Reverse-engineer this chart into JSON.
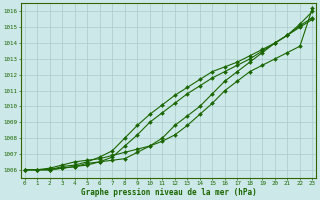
{
  "title": "Graphe pression niveau de la mer (hPa)",
  "bg_color": "#cce8e8",
  "grid_color": "#aacccc",
  "line_color": "#1a6600",
  "x_labels": [
    "0",
    "1",
    "2",
    "3",
    "4",
    "5",
    "6",
    "7",
    "8",
    "9",
    "10",
    "11",
    "12",
    "13",
    "14",
    "15",
    "16",
    "17",
    "18",
    "19",
    "20",
    "21",
    "22",
    "23"
  ],
  "ylim": [
    1005.5,
    1016.5
  ],
  "yticks": [
    1006,
    1007,
    1008,
    1009,
    1010,
    1011,
    1012,
    1013,
    1014,
    1015,
    1016
  ],
  "series": [
    [
      1006.0,
      1006.0,
      1006.0,
      1006.1,
      1006.2,
      1006.3,
      1006.5,
      1006.6,
      1006.7,
      1007.1,
      1007.5,
      1008.0,
      1008.8,
      1009.4,
      1010.0,
      1010.8,
      1011.6,
      1012.2,
      1012.8,
      1013.4,
      1014.0,
      1014.5,
      1015.0,
      1015.5
    ],
    [
      1006.0,
      1006.0,
      1006.0,
      1006.1,
      1006.2,
      1006.4,
      1006.5,
      1006.8,
      1007.5,
      1008.2,
      1009.0,
      1009.6,
      1010.2,
      1010.8,
      1011.3,
      1011.8,
      1012.2,
      1012.6,
      1013.0,
      1013.5,
      1014.0,
      1014.5,
      1015.1,
      1015.6
    ],
    [
      1006.0,
      1006.0,
      1006.0,
      1006.2,
      1006.3,
      1006.5,
      1006.8,
      1007.2,
      1008.0,
      1008.8,
      1009.5,
      1010.1,
      1010.7,
      1011.2,
      1011.7,
      1012.2,
      1012.5,
      1012.8,
      1013.2,
      1013.6,
      1014.0,
      1014.5,
      1015.2,
      1016.0
    ],
    [
      1006.0,
      1006.0,
      1006.1,
      1006.3,
      1006.5,
      1006.6,
      1006.7,
      1006.9,
      1007.1,
      1007.3,
      1007.5,
      1007.8,
      1008.2,
      1008.8,
      1009.5,
      1010.2,
      1011.0,
      1011.6,
      1012.2,
      1012.6,
      1013.0,
      1013.4,
      1013.8,
      1016.2
    ]
  ],
  "title_color": "#1a6600",
  "tick_color": "#1a6600",
  "axis_color": "#336600",
  "figsize": [
    3.2,
    2.0
  ],
  "dpi": 100
}
